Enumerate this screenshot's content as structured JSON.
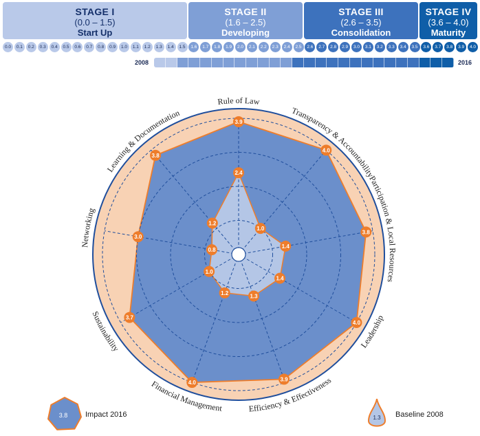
{
  "stages": [
    {
      "name": "STAGE I",
      "range": "(0.0 – 1.5)",
      "label": "Start Up"
    },
    {
      "name": "STAGE II",
      "range": "(1.6 – 2.5)",
      "label": "Developing"
    },
    {
      "name": "STAGE III",
      "range": "(2.6 – 3.5)",
      "label": "Consolidation"
    },
    {
      "name": "STAGE IV",
      "range": "(3.6 – 4.0)",
      "label": "Maturity"
    }
  ],
  "scale_ticks": [
    "0.0",
    "0.1",
    "0.2",
    "0.3",
    "0.4",
    "0.5",
    "0.6",
    "0.7",
    "0.8",
    "0.9",
    "1.0",
    "1.1",
    "1.2",
    "1.3",
    "1.4",
    "1.5",
    "1.6",
    "1.7",
    "1.8",
    "1.9",
    "2.0",
    "2.1",
    "2.2",
    "2.3",
    "2.4",
    "2.5",
    "2.6",
    "2.7",
    "2.8",
    "2.9",
    "3.0",
    "3.1",
    "3.2",
    "3.3",
    "3.4",
    "3.5",
    "3.6",
    "3.7",
    "3.8",
    "3.9",
    "4.0"
  ],
  "progress": {
    "start_label": "2008",
    "end_label": "2016",
    "start_value": 1.3,
    "end_value": 3.8
  },
  "colors": {
    "stage1": "#b9c9e9",
    "stage2": "#7f9fd6",
    "stage3": "#3d72bd",
    "stage4": "#0f5ea8",
    "impact_fill": "#6b8fcb",
    "baseline_fill": "#b4c6e6",
    "marker": "#ee7d2b",
    "halo": "#f8d2b4",
    "grid": "#1f4e9c"
  },
  "chart_data": {
    "type": "radar",
    "axes": [
      "Rule of Law",
      "Transparency & Accountability",
      "Participation & Local Resources",
      "Leadership",
      "Efficiency & Effectiveness",
      "Financial Management",
      "Sustainability",
      "Networking",
      "Learning & Documentation"
    ],
    "rlim": [
      0,
      4
    ],
    "series": [
      {
        "name": "Impact 2016",
        "values": [
          3.9,
          4.0,
          3.8,
          4.0,
          3.9,
          4.0,
          3.7,
          3.0,
          3.8
        ],
        "display": [
          "3.9",
          "4.0",
          "3.8",
          "4.0",
          "3.9",
          "4.0",
          "3.7",
          "3.0",
          "3.8"
        ]
      },
      {
        "name": "Baseline 2008",
        "values": [
          2.4,
          1.0,
          1.4,
          1.4,
          1.3,
          1.2,
          1.0,
          0.8,
          1.2
        ],
        "display": [
          "2.4",
          "1.0",
          "1.4",
          "1.4",
          "1.3",
          "1.2",
          "1.0",
          "0.8",
          "1.2"
        ]
      }
    ],
    "legend": [
      {
        "label": "Impact 2016",
        "sample": "3.8"
      },
      {
        "label": "Baseline 2008",
        "sample": "1.3"
      }
    ]
  }
}
